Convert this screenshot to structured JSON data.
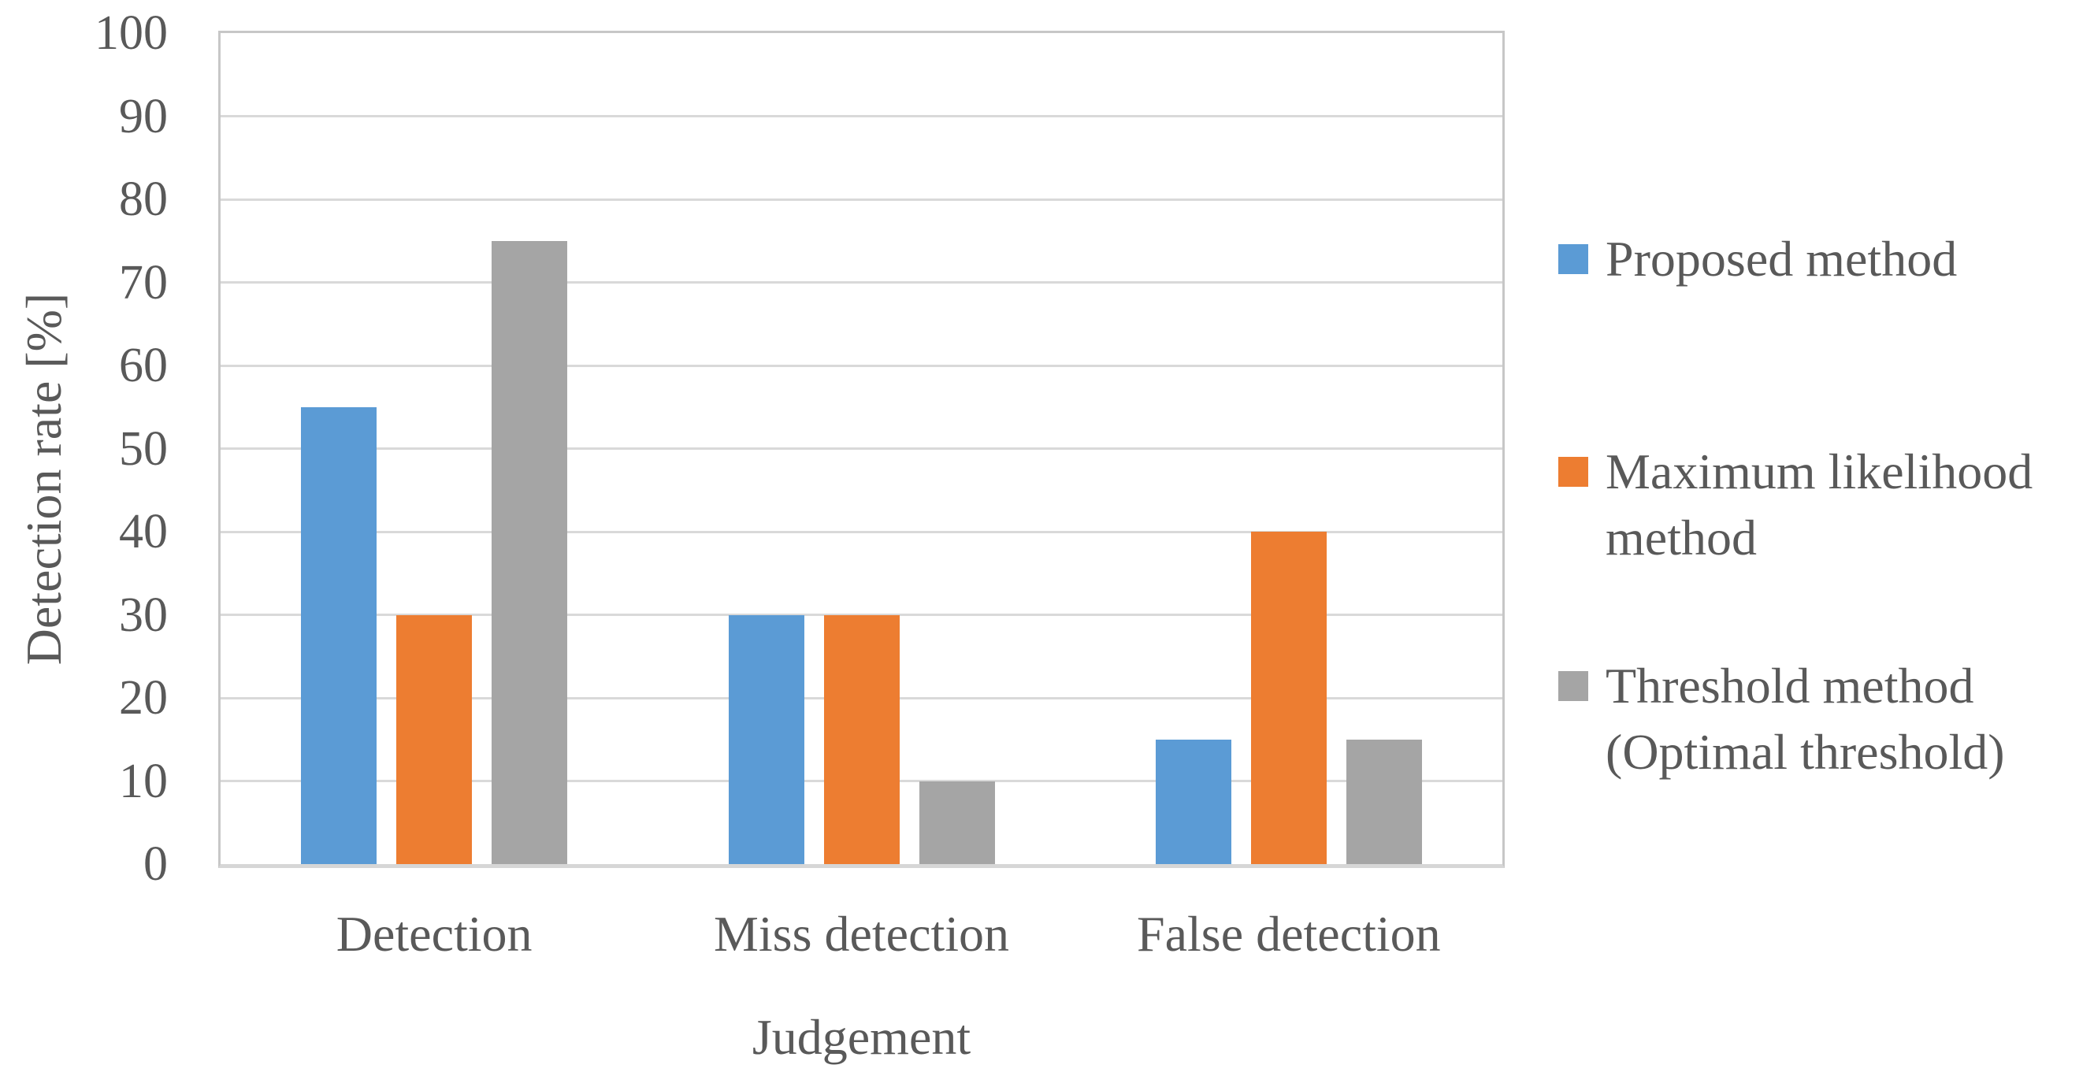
{
  "chart_data": {
    "type": "bar",
    "title": "",
    "xlabel": "Judgement",
    "ylabel": "Detection rate [%]",
    "categories": [
      "Detection",
      "Miss detection",
      "False detection"
    ],
    "series": [
      {
        "name": "Proposed method",
        "legend_label": "Proposed method",
        "color": "#5B9BD5",
        "values": [
          55,
          30,
          15
        ]
      },
      {
        "name": "Maximum likelihood method",
        "legend_label": "Maximum likelihood\nmethod",
        "color": "#ED7D31",
        "values": [
          30,
          30,
          40
        ]
      },
      {
        "name": "Threshold method (Optimal threshold)",
        "legend_label": "Threshold method\n(Optimal threshold)",
        "color": "#A5A5A5",
        "values": [
          75,
          10,
          15
        ]
      }
    ],
    "ylim": [
      0,
      100
    ],
    "yticks": [
      0,
      10,
      20,
      30,
      40,
      50,
      60,
      70,
      80,
      90,
      100
    ],
    "grid": true,
    "legend_position": "right"
  },
  "colors": {
    "text": "#595959",
    "gridline": "#D9D9D9",
    "plot_border": "#C7C7C7",
    "axis_line": "#D6D6D6",
    "background": "#FFFFFF"
  }
}
